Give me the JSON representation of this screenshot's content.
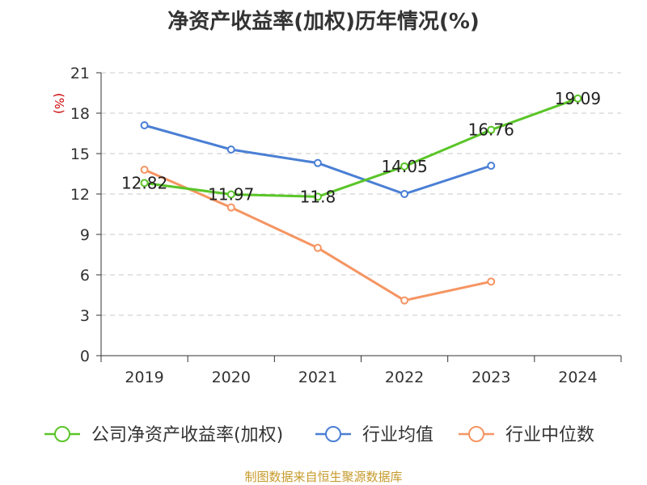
{
  "chart_data": {
    "type": "line",
    "title": "净资产收益率(加权)历年情况(%)",
    "ylabel": "(%)",
    "categories": [
      "2019",
      "2020",
      "2021",
      "2022",
      "2023",
      "2024"
    ],
    "ylim": [
      0,
      21
    ],
    "yticks": [
      "0",
      "3",
      "6",
      "9",
      "12",
      "15",
      "18",
      "21"
    ],
    "grid": true,
    "legend_position": "bottom",
    "series": [
      {
        "name": "公司净资产收益率(加权)",
        "color": "#5ac528",
        "labeled": true,
        "values": [
          12.82,
          11.97,
          11.8,
          14.05,
          16.76,
          19.09
        ],
        "labels": [
          "12.82",
          "11.97",
          "11.8",
          "14.05",
          "16.76",
          "19.09"
        ]
      },
      {
        "name": "行业均值",
        "color": "#4a7fd4",
        "labeled": false,
        "values": [
          17.1,
          15.3,
          14.3,
          12.0,
          14.1,
          null
        ]
      },
      {
        "name": "行业中位数",
        "color": "#f59562",
        "labeled": false,
        "values": [
          13.8,
          11.0,
          8.0,
          4.1,
          5.5,
          null
        ]
      }
    ]
  },
  "source_note": "制图数据来自恒生聚源数据库"
}
